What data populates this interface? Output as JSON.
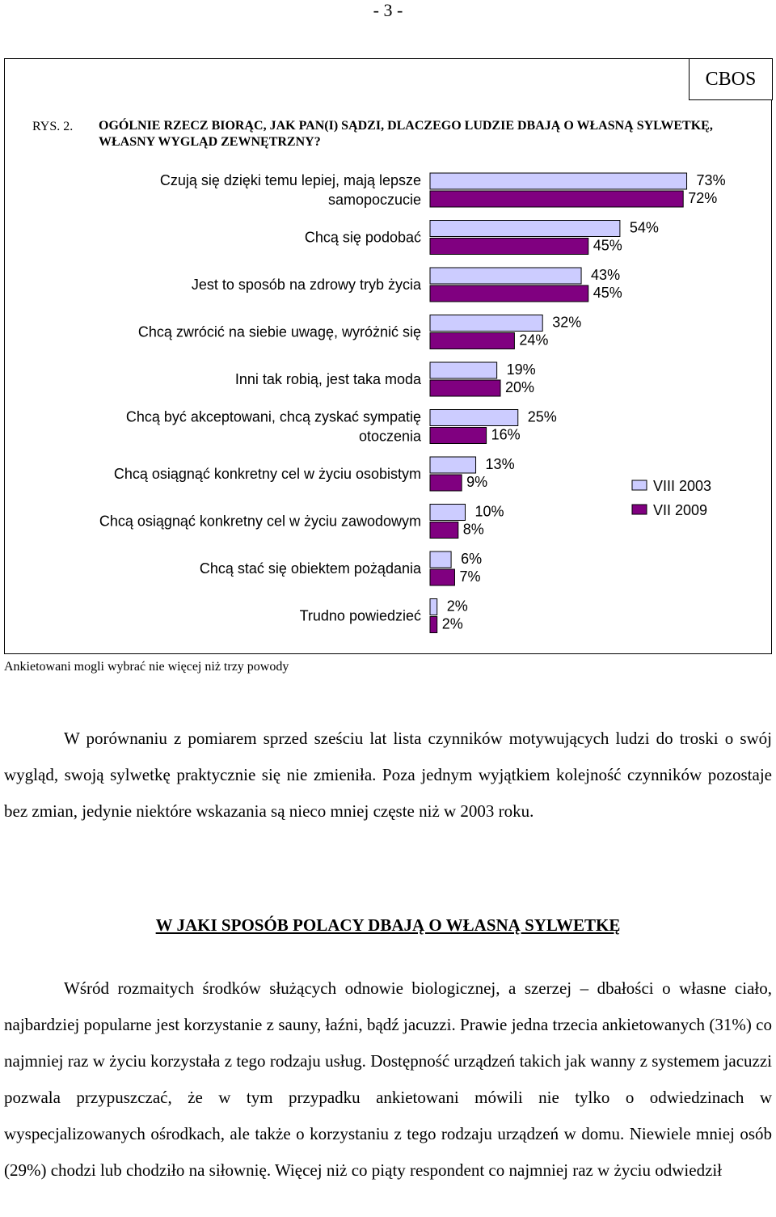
{
  "page": {
    "number": "- 3 -"
  },
  "figure": {
    "source": "CBOS",
    "label": "RYS. 2.",
    "title": "OGÓLNIE RZECZ BIORĄC, JAK PAN(I) SĄDZI, DLACZEGO LUDZIE DBAJĄ O WŁASNĄ SYLWETKĘ, WŁASNY WYGLĄD ZEWNĘTRZNY?",
    "footnote": "Ankietowani mogli wybrać nie więcej niż trzy powody"
  },
  "chart_data": {
    "type": "bar",
    "orientation": "horizontal",
    "title": "",
    "xlabel": "",
    "ylabel": "",
    "xlim": [
      0,
      75
    ],
    "grid": false,
    "legend": "right",
    "categories": [
      [
        "Czują się dzięki temu lepiej, mają lepsze",
        "samopoczucie"
      ],
      [
        "Chcą się podobać"
      ],
      [
        "Jest to sposób na zdrowy tryb życia"
      ],
      [
        "Chcą zwrócić na siebie uwagę, wyróżnić się"
      ],
      [
        "Inni tak robią, jest taka moda"
      ],
      [
        "Chcą być akceptowani, chcą zyskać sympatię",
        "otoczenia"
      ],
      [
        "Chcą osiągnąć konkretny cel w życiu osobistym"
      ],
      [
        "Chcą osiągnąć konkretny cel w życiu zawodowym"
      ],
      [
        "Chcą stać się obiektem pożądania"
      ],
      [
        "Trudno powiedzieć"
      ]
    ],
    "series": [
      {
        "name": "VIII 2003",
        "color": "#CCCCFF",
        "values": [
          73,
          54,
          43,
          32,
          19,
          25,
          13,
          10,
          6,
          2
        ]
      },
      {
        "name": "VII 2009",
        "color": "#800080",
        "values": [
          72,
          45,
          45,
          24,
          20,
          16,
          9,
          8,
          7,
          2
        ]
      }
    ],
    "value_suffix": "%"
  },
  "body": {
    "paragraph1": "W porównaniu z pomiarem sprzed sześciu lat lista czynników motywujących ludzi do troski o swój wygląd, swoją sylwetkę praktycznie się nie zmieniła. Poza jednym wyjątkiem kolejność czynników pozostaje bez zmian, jedynie niektóre wskazania są nieco mniej częste niż w 2003 roku.",
    "heading": "W JAKI SPOSÓB POLACY DBAJĄ O WŁASNĄ SYLWETKĘ",
    "paragraph2": "Wśród rozmaitych środków służących odnowie biologicznej, a szerzej – dbałości o własne ciało, najbardziej popularne jest korzystanie z sauny, łaźni, bądź jacuzzi. Prawie jedna trzecia ankietowanych (31%) co najmniej raz w życiu korzystała z tego rodzaju usług. Dostępność urządzeń takich jak wanny z systemem jacuzzi pozwala przypuszczać, że w tym przypadku ankietowani mówili nie tylko o odwiedzinach w wyspecjalizowanych ośrodkach, ale także o korzystaniu z tego rodzaju urządzeń w domu. Niewiele mniej osób (29%) chodzi lub chodziło na siłownię. Więcej niż co piąty respondent co najmniej raz w życiu odwiedził"
  }
}
